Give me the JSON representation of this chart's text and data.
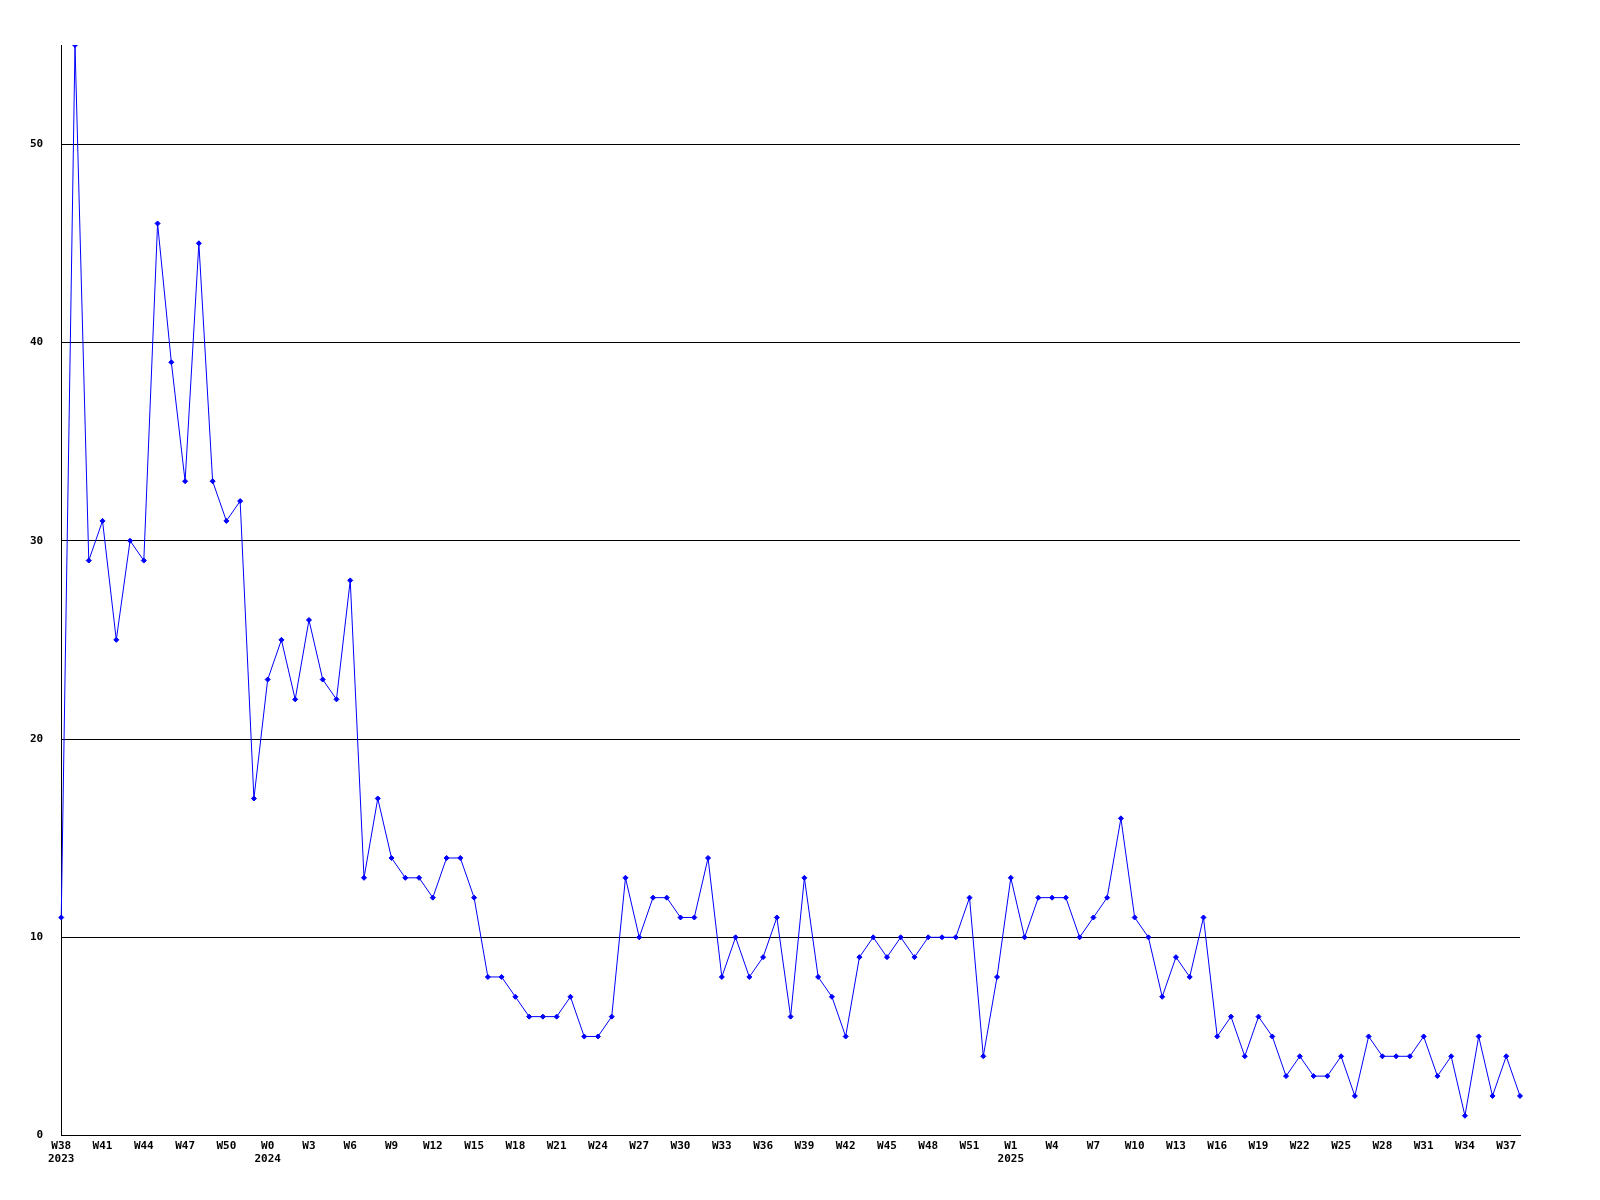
{
  "chart_data": {
    "type": "line",
    "categories": [
      "W38\n2023",
      null,
      null,
      "W41",
      null,
      null,
      "W44",
      null,
      null,
      "W47",
      null,
      null,
      "W50",
      null,
      null,
      "W0\n2024",
      null,
      null,
      "W3",
      null,
      null,
      "W6",
      null,
      null,
      "W9",
      null,
      null,
      "W12",
      null,
      null,
      "W15",
      null,
      null,
      "W18",
      null,
      null,
      "W21",
      null,
      null,
      "W24",
      null,
      null,
      "W27",
      null,
      null,
      "W30",
      null,
      null,
      "W33",
      null,
      null,
      "W36",
      null,
      null,
      "W39",
      null,
      null,
      "W42",
      null,
      null,
      "W45",
      null,
      null,
      "W48",
      null,
      null,
      "W51",
      null,
      null,
      "W1\n2025",
      null,
      null,
      "W4",
      null,
      null,
      "W7",
      null,
      null,
      "W10",
      null,
      null,
      "W13",
      null,
      null,
      "W16",
      null,
      null,
      "W19",
      null,
      null,
      "W22",
      null,
      null,
      "W25",
      null,
      null,
      "W28",
      null,
      null,
      "W31",
      null,
      null,
      "W34",
      null,
      null,
      "W37",
      null
    ],
    "series": [
      {
        "color": "#0000ff",
        "values": [
          11,
          55,
          29,
          31,
          25,
          30,
          29,
          46,
          39,
          33,
          45,
          33,
          31,
          32,
          17,
          23,
          25,
          22,
          26,
          23,
          22,
          28,
          13,
          17,
          14,
          13,
          13,
          12,
          14,
          14,
          12,
          8,
          8,
          7,
          6,
          6,
          6,
          7,
          5,
          5,
          6,
          13,
          10,
          12,
          12,
          11,
          11,
          14,
          8,
          10,
          8,
          9,
          11,
          6,
          13,
          8,
          7,
          5,
          9,
          10,
          9,
          10,
          9,
          10,
          10,
          10,
          12,
          4,
          8,
          13,
          10,
          12,
          12,
          12,
          10,
          11,
          12,
          16,
          11,
          10,
          7,
          9,
          8,
          11,
          5,
          6,
          4,
          6,
          5,
          3,
          4,
          3,
          3,
          4,
          2,
          5,
          4,
          4,
          4,
          5,
          3,
          4,
          1,
          5,
          2,
          4,
          2
        ]
      }
    ],
    "ylim": [
      0,
      55
    ],
    "yticks": [
      0,
      10,
      20,
      30,
      40,
      50
    ],
    "grid": "y",
    "legend": false,
    "marker": "diamond",
    "line_style": "solid"
  }
}
